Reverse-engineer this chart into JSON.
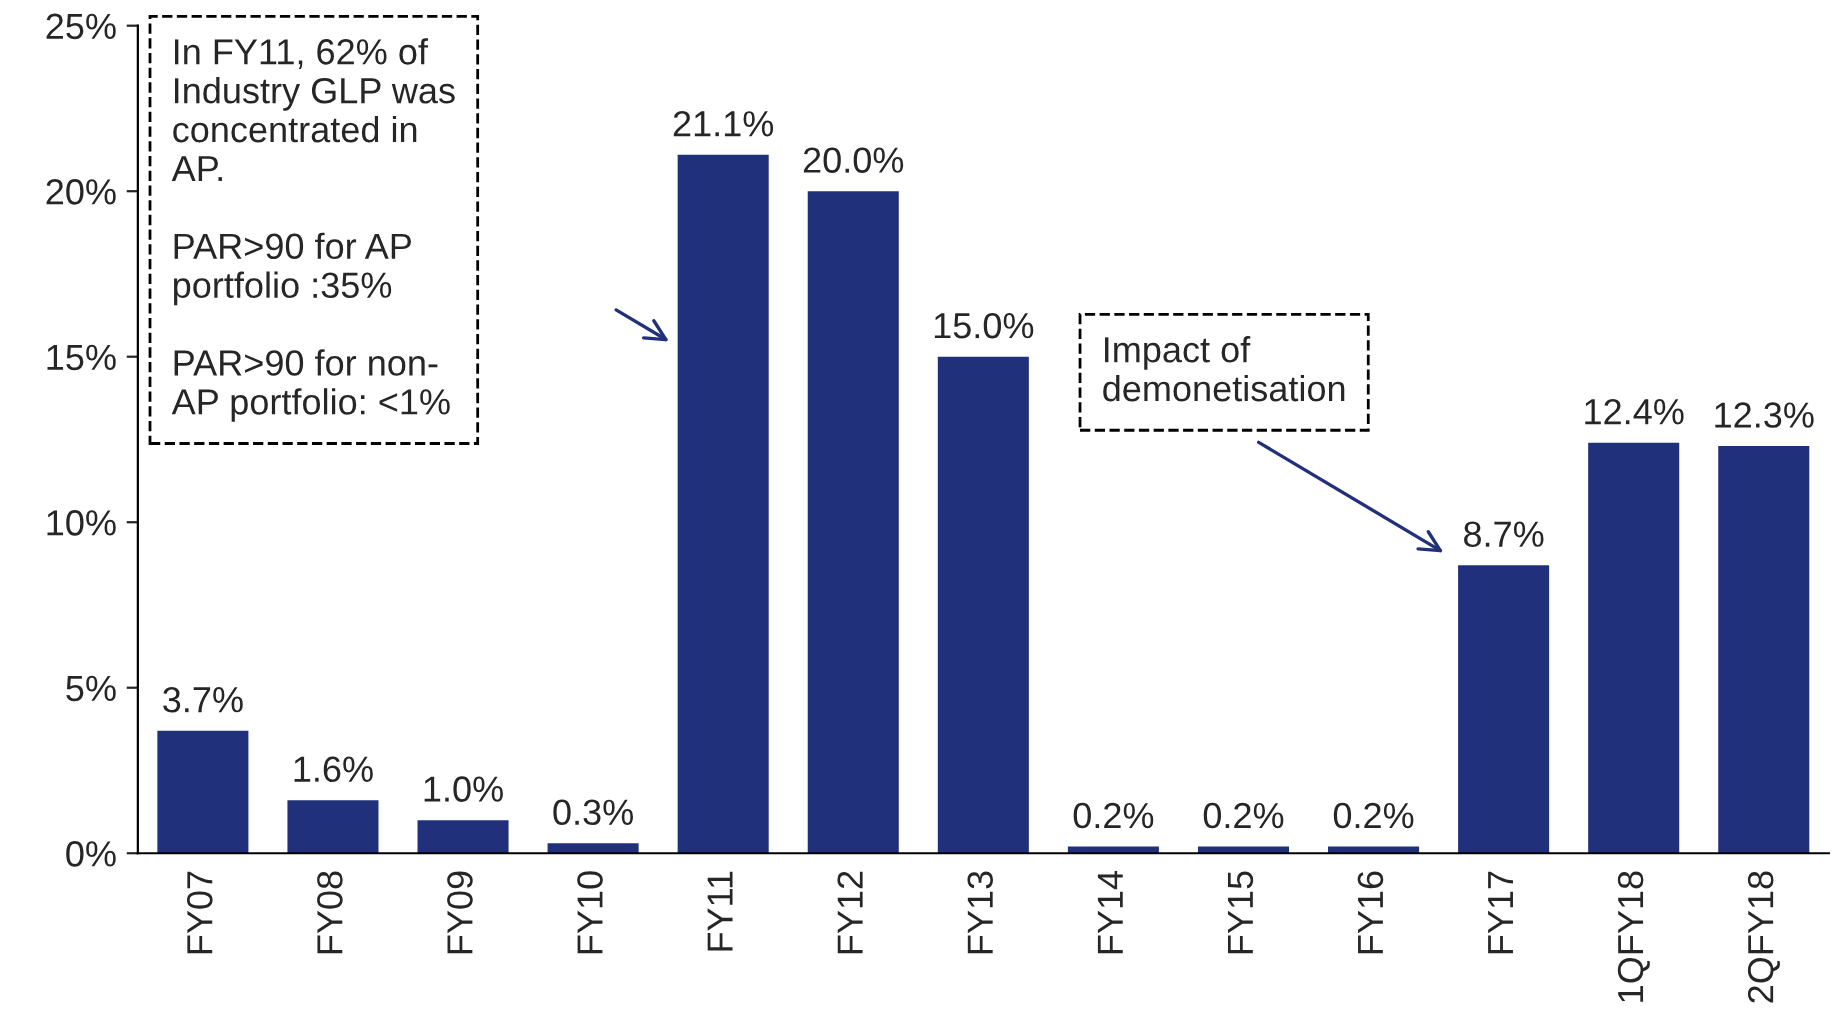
{
  "chart_data": {
    "type": "bar",
    "categories": [
      "FY07",
      "FY08",
      "FY09",
      "FY10",
      "FY11",
      "FY12",
      "FY13",
      "FY14",
      "FY15",
      "FY16",
      "FY17",
      "1QFY18",
      "2QFY18"
    ],
    "values": [
      3.7,
      1.6,
      1.0,
      0.3,
      21.1,
      20.0,
      15.0,
      0.2,
      0.2,
      0.2,
      8.7,
      12.4,
      12.3
    ],
    "value_labels": [
      "3.7%",
      "1.6%",
      "1.0%",
      "0.3%",
      "21.1%",
      "20.0%",
      "15.0%",
      "0.2%",
      "0.2%",
      "0.2%",
      "8.7%",
      "12.4%",
      "12.3%"
    ],
    "color": "#21307a",
    "ylim": [
      0,
      25
    ],
    "yticks": [
      {
        "value": 0,
        "label": "0%"
      },
      {
        "value": 5,
        "label": "5%"
      },
      {
        "value": 10,
        "label": "10%"
      },
      {
        "value": 15,
        "label": "15%"
      },
      {
        "value": 20,
        "label": "20%"
      },
      {
        "value": 25,
        "label": "25%"
      }
    ],
    "grid": false,
    "legend": false,
    "annotations": [
      "In FY11, 62% of\nIndustry GLP was\nconcentrated in\nAP.\n\nPAR>90 for AP\nportfolio :35%\n\nPAR>90 for non-\nAP portfolio: <1%",
      "Impact of\ndemonetisation"
    ]
  }
}
